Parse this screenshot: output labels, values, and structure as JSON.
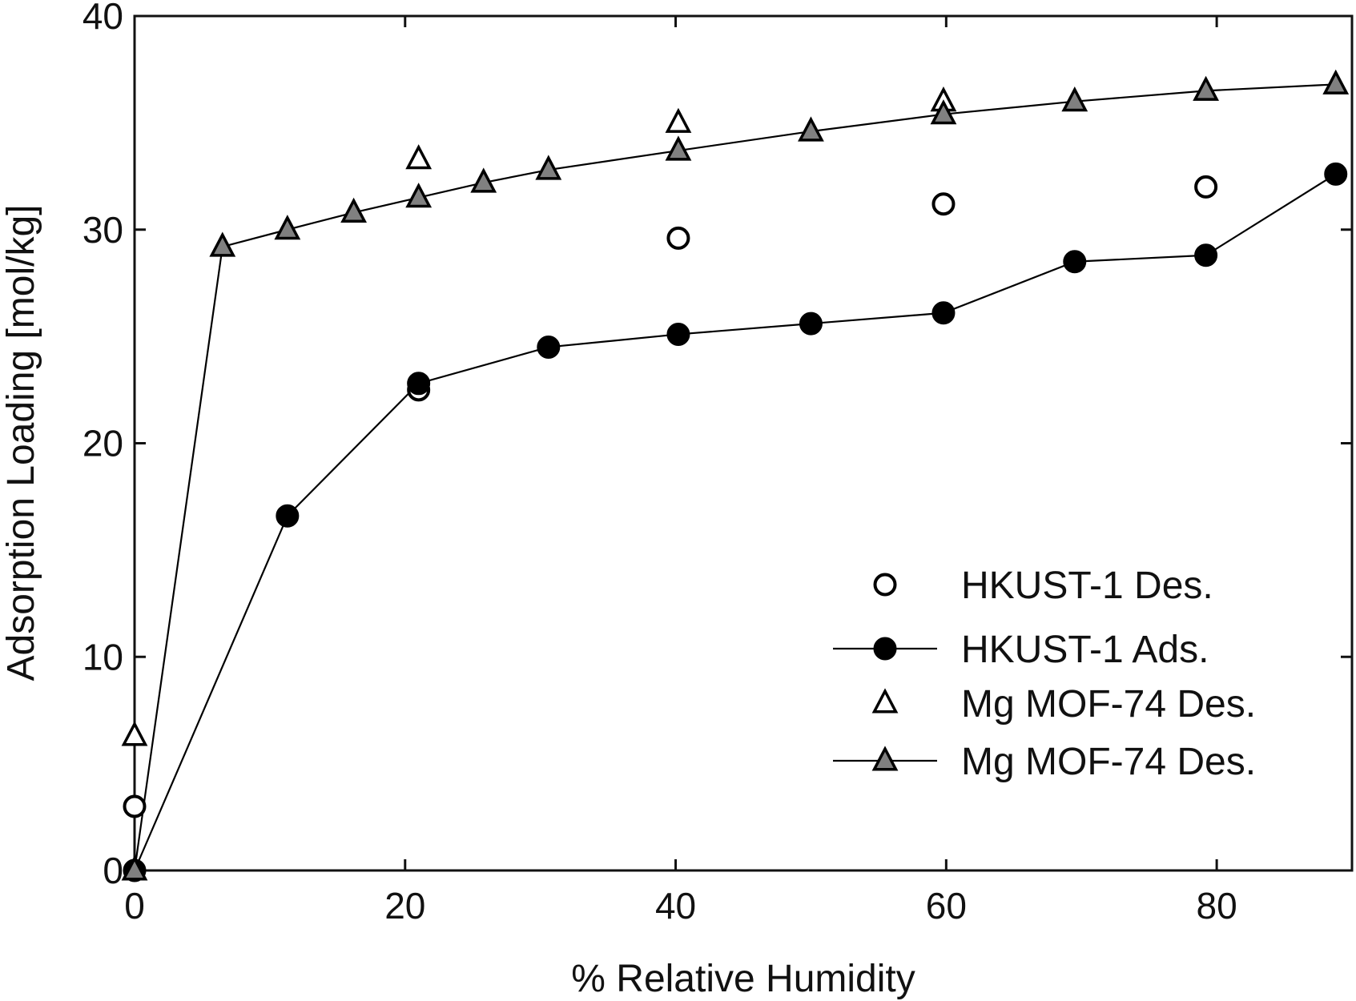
{
  "chart_data": {
    "type": "scatter",
    "title": "",
    "xlabel": "% Relative Humidity",
    "ylabel": "Adsorption Loading [mol/kg]",
    "xlim": [
      0,
      90
    ],
    "ylim": [
      0,
      40
    ],
    "xticks": [
      0,
      20,
      40,
      60,
      80
    ],
    "yticks": [
      0,
      10,
      20,
      30,
      40
    ],
    "grid": false,
    "legend_position": "bottom-right",
    "series": [
      {
        "name": "HKUST-1 Des.",
        "marker": "circle-open",
        "line": false,
        "points": [
          [
            0,
            3.0
          ],
          [
            21,
            22.5
          ],
          [
            40.2,
            29.6
          ],
          [
            59.8,
            31.2
          ],
          [
            79.2,
            32.0
          ]
        ]
      },
      {
        "name": "HKUST-1 Ads.",
        "marker": "circle-filled",
        "line": true,
        "points": [
          [
            0,
            0
          ],
          [
            11.3,
            16.6
          ],
          [
            21,
            22.8
          ],
          [
            30.6,
            24.5
          ],
          [
            40.2,
            25.1
          ],
          [
            50,
            25.6
          ],
          [
            59.8,
            26.1
          ],
          [
            69.5,
            28.5
          ],
          [
            79.2,
            28.8
          ],
          [
            88.8,
            32.6
          ]
        ]
      },
      {
        "name": "Mg MOF-74 Des.",
        "marker": "triangle-open",
        "line": false,
        "points": [
          [
            0,
            6.3
          ],
          [
            21,
            33.3
          ],
          [
            40.2,
            35.0
          ],
          [
            59.8,
            36.0
          ]
        ]
      },
      {
        "name": "Mg MOF-74 Des.",
        "marker": "triangle-gray",
        "line": true,
        "points": [
          [
            0,
            0
          ],
          [
            6.5,
            29.2
          ],
          [
            11.3,
            30.0
          ],
          [
            16.2,
            30.8
          ],
          [
            21,
            31.5
          ],
          [
            25.8,
            32.2
          ],
          [
            30.6,
            32.8
          ],
          [
            40.2,
            33.7
          ],
          [
            50,
            34.6
          ],
          [
            59.8,
            35.4
          ],
          [
            69.5,
            36.0
          ],
          [
            79.2,
            36.5
          ],
          [
            88.8,
            36.8
          ]
        ]
      }
    ]
  }
}
